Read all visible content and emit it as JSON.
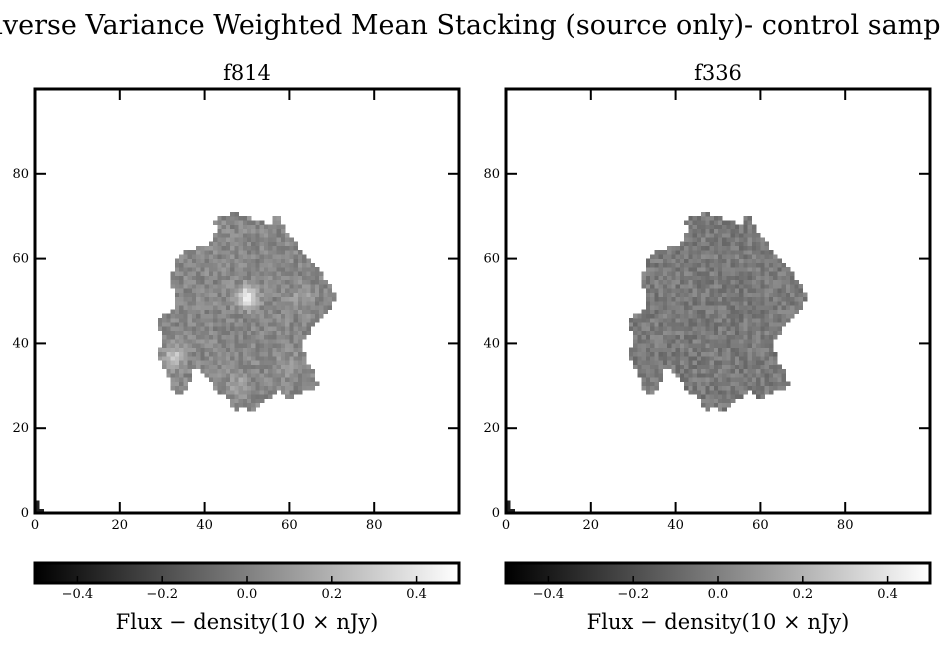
{
  "figure": {
    "title": "Inverse Variance Weighted Mean Stacking (source only)- control sample"
  },
  "chart_data": [
    {
      "type": "heatmap",
      "title": "f814",
      "xlabel": "",
      "ylabel": "",
      "xlim": [
        0,
        100
      ],
      "ylim": [
        0,
        100
      ],
      "xticks": [
        "0",
        "20",
        "40",
        "60",
        "80"
      ],
      "yticks": [
        "0",
        "20",
        "40",
        "60",
        "80"
      ],
      "colormap": "gray",
      "colorbar": {
        "label": "Flux − density(10 × nJy)",
        "range": [
          -0.5,
          0.5
        ],
        "ticks": [
          "−0.4",
          "−0.2",
          "0.0",
          "0.2",
          "0.4"
        ]
      },
      "background_color": "#ffffff",
      "typical_value": 0.03,
      "features": [
        {
          "x": 50,
          "y": 51,
          "value": 0.45
        },
        {
          "x": 33,
          "y": 37,
          "value": 0.25
        },
        {
          "x": 48,
          "y": 30,
          "value": 0.15
        },
        {
          "x": 63,
          "y": 51,
          "value": 0.12
        },
        {
          "x": 60,
          "y": 35,
          "value": 0.1
        }
      ]
    },
    {
      "type": "heatmap",
      "title": "f336",
      "xlabel": "",
      "ylabel": "",
      "xlim": [
        0,
        100
      ],
      "ylim": [
        0,
        100
      ],
      "xticks": [
        "0",
        "20",
        "40",
        "60",
        "80"
      ],
      "yticks": [
        "0",
        "20",
        "40",
        "60",
        "80"
      ],
      "colormap": "gray",
      "colorbar": {
        "label": "Flux − density(10 × nJy)",
        "range": [
          -0.5,
          0.5
        ],
        "ticks": [
          "−0.4",
          "−0.2",
          "0.0",
          "0.2",
          "0.4"
        ]
      },
      "background_color": "#ffffff",
      "typical_value": -0.02,
      "features": []
    }
  ],
  "source_footprint": {
    "outline_x": [
      49,
      53,
      56,
      57,
      59,
      61,
      62,
      63,
      66,
      68,
      70,
      71,
      69,
      66,
      65,
      63,
      64,
      66,
      67,
      65,
      62,
      60,
      58,
      55,
      52,
      49,
      47,
      46,
      44,
      42,
      40,
      38,
      37,
      35,
      33,
      31,
      29,
      30,
      29,
      33,
      33,
      32,
      33,
      34,
      36,
      40,
      42,
      43,
      42,
      44,
      45,
      47
    ],
    "outline_y": [
      70,
      69,
      68,
      71,
      67,
      65,
      63,
      62,
      59,
      56,
      53,
      51,
      47,
      45,
      42,
      40,
      36,
      33,
      30,
      29,
      28,
      27,
      29,
      27,
      24,
      25,
      24,
      27,
      28,
      30,
      33,
      35,
      32,
      28,
      28,
      33,
      37,
      41,
      46,
      48,
      51,
      55,
      59,
      60,
      62,
      63,
      64,
      67,
      69,
      70,
      70,
      71
    ]
  }
}
